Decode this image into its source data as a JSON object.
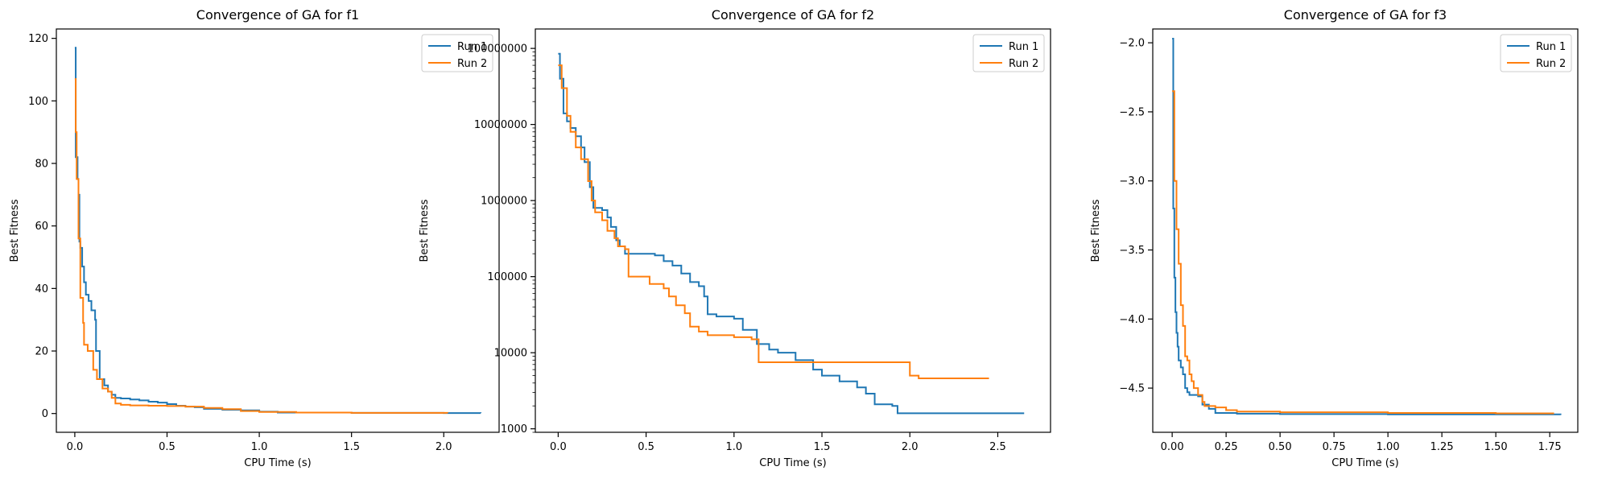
{
  "chart_data": [
    {
      "type": "line",
      "title": "Convergence of GA for f1",
      "xlabel": "CPU Time (s)",
      "ylabel": "Best Fitness",
      "xlim": [
        -0.1,
        2.3
      ],
      "ylim": [
        -6,
        123
      ],
      "xscale": "linear",
      "yscale": "linear",
      "xticks": [
        0.0,
        0.5,
        1.0,
        1.5,
        2.0
      ],
      "xtick_labels": [
        "0.0",
        "0.5",
        "1.0",
        "1.5",
        "2.0"
      ],
      "yticks": [
        0,
        20,
        40,
        60,
        80,
        100,
        120
      ],
      "ytick_labels": [
        "0",
        "20",
        "40",
        "60",
        "80",
        "100",
        "120"
      ],
      "grid": false,
      "legend": "upper right",
      "series": [
        {
          "name": "Run 1",
          "color": "#1f77b4",
          "points": [
            [
              0.0,
              117
            ],
            [
              0.005,
              82
            ],
            [
              0.015,
              75
            ],
            [
              0.02,
              70
            ],
            [
              0.025,
              55
            ],
            [
              0.03,
              53
            ],
            [
              0.04,
              47
            ],
            [
              0.05,
              42
            ],
            [
              0.06,
              38
            ],
            [
              0.075,
              36
            ],
            [
              0.09,
              33
            ],
            [
              0.11,
              30
            ],
            [
              0.115,
              20
            ],
            [
              0.135,
              11
            ],
            [
              0.16,
              9
            ],
            [
              0.18,
              7
            ],
            [
              0.2,
              6
            ],
            [
              0.22,
              5
            ],
            [
              0.25,
              4.8
            ],
            [
              0.3,
              4.5
            ],
            [
              0.35,
              4.2
            ],
            [
              0.4,
              3.8
            ],
            [
              0.45,
              3.5
            ],
            [
              0.5,
              3.0
            ],
            [
              0.55,
              2.5
            ],
            [
              0.6,
              2.2
            ],
            [
              0.65,
              2.0
            ],
            [
              0.7,
              1.5
            ],
            [
              0.8,
              1.2
            ],
            [
              0.9,
              1.0
            ],
            [
              1.0,
              0.6
            ],
            [
              1.1,
              0.3
            ],
            [
              1.5,
              0.2
            ],
            [
              2.0,
              0.15
            ],
            [
              2.2,
              0.1
            ]
          ]
        },
        {
          "name": "Run 2",
          "color": "#ff7f0e",
          "points": [
            [
              0.0,
              107
            ],
            [
              0.005,
              90
            ],
            [
              0.01,
              75
            ],
            [
              0.02,
              56
            ],
            [
              0.03,
              37
            ],
            [
              0.045,
              29
            ],
            [
              0.05,
              22
            ],
            [
              0.07,
              20
            ],
            [
              0.1,
              14
            ],
            [
              0.12,
              11
            ],
            [
              0.15,
              8
            ],
            [
              0.18,
              7
            ],
            [
              0.2,
              5
            ],
            [
              0.22,
              3.2
            ],
            [
              0.25,
              2.8
            ],
            [
              0.3,
              2.6
            ],
            [
              0.4,
              2.5
            ],
            [
              0.5,
              2.4
            ],
            [
              0.6,
              2.2
            ],
            [
              0.7,
              1.8
            ],
            [
              0.8,
              1.4
            ],
            [
              0.9,
              0.8
            ],
            [
              1.0,
              0.5
            ],
            [
              1.2,
              0.3
            ],
            [
              1.5,
              0.2
            ],
            [
              2.02,
              0.1
            ]
          ]
        }
      ]
    },
    {
      "type": "line",
      "title": "Convergence of GA for f2",
      "xlabel": "CPU Time (s)",
      "ylabel": "Best Fitness",
      "xlim": [
        -0.13,
        2.8
      ],
      "ylim": [
        900,
        180000000
      ],
      "xscale": "linear",
      "yscale": "log",
      "xticks": [
        0.0,
        0.5,
        1.0,
        1.5,
        2.0,
        2.5
      ],
      "xtick_labels": [
        "0.0",
        "0.5",
        "1.0",
        "1.5",
        "2.0",
        "2.5"
      ],
      "yticks": [
        1000,
        10000,
        100000,
        1000000,
        10000000,
        100000000
      ],
      "ytick_labels": [
        "1000",
        "10000",
        "100000",
        "1000000",
        "10000000",
        "100000000"
      ],
      "grid": false,
      "legend": "upper right",
      "series": [
        {
          "name": "Run 1",
          "color": "#1f77b4",
          "points": [
            [
              0.0,
              85000000
            ],
            [
              0.01,
              40000000
            ],
            [
              0.03,
              14000000
            ],
            [
              0.05,
              11000000
            ],
            [
              0.07,
              9000000
            ],
            [
              0.1,
              7000000
            ],
            [
              0.13,
              5000000
            ],
            [
              0.15,
              3200000
            ],
            [
              0.18,
              1500000
            ],
            [
              0.2,
              800000
            ],
            [
              0.25,
              750000
            ],
            [
              0.28,
              600000
            ],
            [
              0.3,
              450000
            ],
            [
              0.33,
              300000
            ],
            [
              0.35,
              250000
            ],
            [
              0.38,
              200000
            ],
            [
              0.55,
              190000
            ],
            [
              0.6,
              160000
            ],
            [
              0.65,
              140000
            ],
            [
              0.7,
              110000
            ],
            [
              0.75,
              85000
            ],
            [
              0.8,
              75000
            ],
            [
              0.83,
              55000
            ],
            [
              0.85,
              32000
            ],
            [
              0.9,
              30000
            ],
            [
              1.0,
              28000
            ],
            [
              1.05,
              20000
            ],
            [
              1.13,
              13000
            ],
            [
              1.2,
              11000
            ],
            [
              1.25,
              10000
            ],
            [
              1.35,
              8000
            ],
            [
              1.45,
              6000
            ],
            [
              1.5,
              5000
            ],
            [
              1.6,
              4200
            ],
            [
              1.7,
              3500
            ],
            [
              1.75,
              2900
            ],
            [
              1.8,
              2100
            ],
            [
              1.9,
              2000
            ],
            [
              1.93,
              1600
            ],
            [
              2.2,
              1600
            ],
            [
              2.65,
              1600
            ]
          ]
        },
        {
          "name": "Run 2",
          "color": "#ff7f0e",
          "points": [
            [
              0.0,
              60000000
            ],
            [
              0.02,
              30000000
            ],
            [
              0.05,
              13000000
            ],
            [
              0.07,
              8000000
            ],
            [
              0.1,
              5000000
            ],
            [
              0.13,
              3500000
            ],
            [
              0.17,
              1800000
            ],
            [
              0.19,
              1000000
            ],
            [
              0.21,
              700000
            ],
            [
              0.25,
              550000
            ],
            [
              0.28,
              400000
            ],
            [
              0.32,
              320000
            ],
            [
              0.34,
              250000
            ],
            [
              0.38,
              230000
            ],
            [
              0.4,
              100000
            ],
            [
              0.5,
              100000
            ],
            [
              0.52,
              80000
            ],
            [
              0.6,
              70000
            ],
            [
              0.63,
              55000
            ],
            [
              0.67,
              42000
            ],
            [
              0.72,
              33000
            ],
            [
              0.75,
              22000
            ],
            [
              0.8,
              19000
            ],
            [
              0.85,
              17000
            ],
            [
              0.95,
              17000
            ],
            [
              1.0,
              16000
            ],
            [
              1.05,
              16000
            ],
            [
              1.1,
              15000
            ],
            [
              1.14,
              7500
            ],
            [
              1.4,
              7500
            ],
            [
              1.7,
              7500
            ],
            [
              1.98,
              7500
            ],
            [
              2.0,
              5000
            ],
            [
              2.05,
              4600
            ],
            [
              2.2,
              4600
            ],
            [
              2.45,
              4600
            ]
          ]
        }
      ]
    },
    {
      "type": "line",
      "title": "Convergence of GA for f3",
      "xlabel": "CPU Time (s)",
      "ylabel": "Best Fitness",
      "xlim": [
        -0.09,
        1.88
      ],
      "ylim": [
        -4.82,
        -1.9
      ],
      "xscale": "linear",
      "yscale": "linear",
      "xticks": [
        0.0,
        0.25,
        0.5,
        0.75,
        1.0,
        1.25,
        1.5,
        1.75
      ],
      "xtick_labels": [
        "0.00",
        "0.25",
        "0.50",
        "0.75",
        "1.00",
        "1.25",
        "1.50",
        "1.75"
      ],
      "yticks": [
        -4.5,
        -4.0,
        -3.5,
        -3.0,
        -2.5,
        -2.0
      ],
      "ytick_labels": [
        "−4.5",
        "−4.0",
        "−3.5",
        "−3.0",
        "−2.5",
        "−2.0"
      ],
      "grid": false,
      "legend": "upper right",
      "series": [
        {
          "name": "Run 1",
          "color": "#1f77b4",
          "points": [
            [
              0.0,
              -1.97
            ],
            [
              0.005,
              -3.2
            ],
            [
              0.01,
              -3.7
            ],
            [
              0.015,
              -3.95
            ],
            [
              0.02,
              -4.1
            ],
            [
              0.025,
              -4.2
            ],
            [
              0.03,
              -4.3
            ],
            [
              0.04,
              -4.35
            ],
            [
              0.05,
              -4.4
            ],
            [
              0.06,
              -4.5
            ],
            [
              0.07,
              -4.53
            ],
            [
              0.08,
              -4.55
            ],
            [
              0.12,
              -4.56
            ],
            [
              0.14,
              -4.62
            ],
            [
              0.17,
              -4.65
            ],
            [
              0.2,
              -4.68
            ],
            [
              0.3,
              -4.685
            ],
            [
              0.5,
              -4.688
            ],
            [
              1.0,
              -4.69
            ],
            [
              1.5,
              -4.69
            ],
            [
              1.8,
              -4.695
            ]
          ]
        },
        {
          "name": "Run 2",
          "color": "#ff7f0e",
          "points": [
            [
              0.0,
              -2.35
            ],
            [
              0.01,
              -3.0
            ],
            [
              0.02,
              -3.35
            ],
            [
              0.03,
              -3.6
            ],
            [
              0.04,
              -3.9
            ],
            [
              0.05,
              -4.05
            ],
            [
              0.06,
              -4.27
            ],
            [
              0.07,
              -4.3
            ],
            [
              0.08,
              -4.4
            ],
            [
              0.09,
              -4.45
            ],
            [
              0.1,
              -4.5
            ],
            [
              0.12,
              -4.55
            ],
            [
              0.14,
              -4.6
            ],
            [
              0.15,
              -4.63
            ],
            [
              0.2,
              -4.64
            ],
            [
              0.25,
              -4.66
            ],
            [
              0.3,
              -4.67
            ],
            [
              0.5,
              -4.675
            ],
            [
              1.0,
              -4.68
            ],
            [
              1.5,
              -4.683
            ],
            [
              1.77,
              -4.683
            ]
          ]
        }
      ]
    }
  ]
}
